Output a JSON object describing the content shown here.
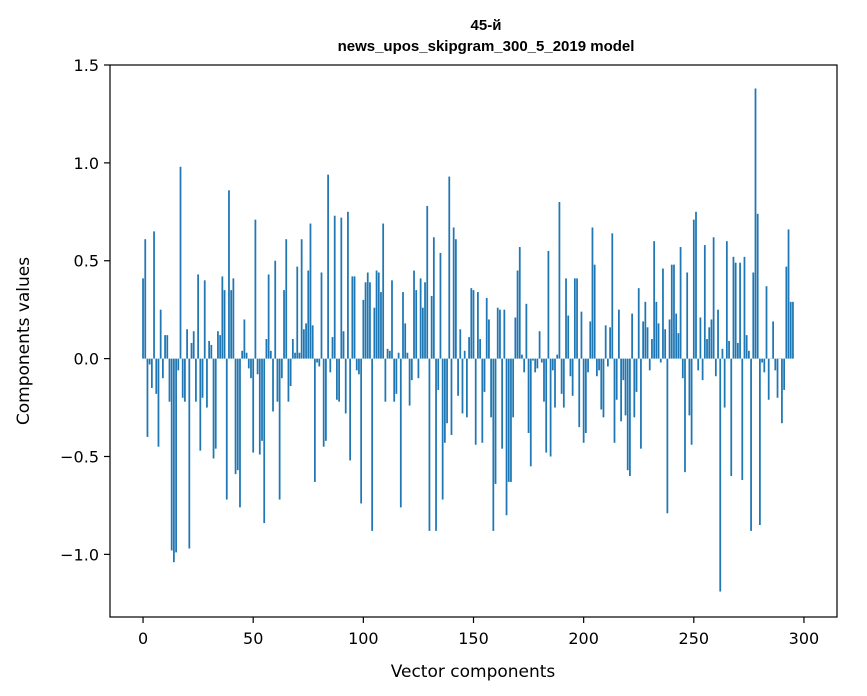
{
  "chart_data": {
    "type": "bar",
    "title_line1": "45-й",
    "title_line2": "news_upos_skipgram_300_5_2019 model",
    "xlabel": "Vector components",
    "ylabel": "Components values",
    "xlim": [
      -15,
      315
    ],
    "ylim": [
      -1.32,
      1.5
    ],
    "xticks": [
      0,
      50,
      100,
      150,
      200,
      250,
      300
    ],
    "xtick_labels": [
      "0",
      "50",
      "100",
      "150",
      "200",
      "250",
      "300"
    ],
    "yticks": [
      -1.0,
      -0.5,
      0.0,
      0.5,
      1.0,
      1.5
    ],
    "ytick_labels": [
      "−1.0",
      "−0.5",
      "0.0",
      "0.5",
      "1.0",
      "1.5"
    ],
    "bar_color": "#1f77b4",
    "grid": false,
    "values": [
      0.41,
      0.61,
      -0.4,
      -0.03,
      -0.15,
      0.65,
      -0.18,
      -0.45,
      0.25,
      -0.1,
      0.12,
      0.12,
      -0.22,
      -0.98,
      -1.04,
      -0.99,
      -0.06,
      0.98,
      -0.2,
      -0.22,
      0.15,
      -0.97,
      0.08,
      0.14,
      -0.22,
      0.43,
      -0.47,
      -0.2,
      0.4,
      -0.25,
      0.09,
      0.07,
      -0.51,
      -0.46,
      0.14,
      0.12,
      0.42,
      0.35,
      -0.72,
      0.86,
      0.35,
      0.41,
      -0.59,
      -0.57,
      -0.76,
      0.04,
      0.2,
      0.03,
      -0.05,
      -0.1,
      -0.48,
      0.71,
      -0.08,
      -0.49,
      -0.42,
      -0.84,
      0.1,
      0.43,
      0.04,
      -0.27,
      0.5,
      -0.22,
      -0.72,
      -0.1,
      0.35,
      0.61,
      -0.22,
      -0.14,
      0.1,
      0.03,
      0.47,
      0.03,
      0.61,
      0.15,
      0.18,
      0.45,
      0.69,
      0.17,
      -0.63,
      -0.02,
      -0.04,
      0.44,
      -0.45,
      -0.42,
      0.94,
      -0.07,
      0.11,
      0.73,
      -0.21,
      -0.22,
      0.72,
      0.14,
      -0.28,
      0.75,
      -0.52,
      0.42,
      0.42,
      -0.06,
      -0.08,
      -0.74,
      0.3,
      0.39,
      0.44,
      0.39,
      -0.88,
      0.26,
      0.45,
      0.44,
      0.34,
      0.69,
      -0.22,
      0.05,
      0.04,
      0.4,
      -0.22,
      -0.18,
      0.03,
      -0.76,
      0.34,
      0.18,
      0.03,
      -0.24,
      -0.11,
      0.45,
      0.35,
      -0.1,
      0.41,
      0.26,
      0.39,
      0.78,
      -0.88,
      0.32,
      0.62,
      -0.88,
      -0.16,
      0.54,
      -0.72,
      -0.43,
      -0.33,
      0.93,
      -0.39,
      0.67,
      0.61,
      -0.19,
      0.15,
      -0.28,
      0.04,
      -0.3,
      0.11,
      0.36,
      0.35,
      -0.44,
      0.34,
      0.1,
      -0.43,
      -0.17,
      0.31,
      0.2,
      -0.3,
      -0.88,
      -0.64,
      0.26,
      0.25,
      -0.46,
      0.25,
      -0.8,
      -0.63,
      -0.63,
      -0.3,
      0.21,
      0.45,
      0.57,
      0.02,
      -0.07,
      0.28,
      -0.38,
      -0.55,
      -0.01,
      -0.07,
      -0.05,
      0.14,
      -0.02,
      -0.22,
      -0.48,
      0.55,
      -0.5,
      -0.06,
      -0.25,
      0.02,
      0.8,
      -0.18,
      -0.25,
      0.41,
      0.22,
      -0.09,
      -0.19,
      0.41,
      0.41,
      -0.35,
      0.24,
      -0.43,
      -0.38,
      -0.07,
      0.19,
      0.67,
      0.48,
      -0.09,
      -0.06,
      -0.26,
      -0.3,
      0.17,
      -0.04,
      0.16,
      0.64,
      -0.43,
      -0.21,
      0.25,
      -0.32,
      -0.11,
      -0.29,
      -0.57,
      -0.6,
      0.23,
      -0.3,
      -0.17,
      0.36,
      -0.46,
      0.19,
      0.29,
      0.16,
      -0.06,
      0.1,
      0.6,
      0.29,
      0.18,
      -0.02,
      0.46,
      0.15,
      -0.79,
      0.2,
      0.48,
      0.48,
      0.23,
      0.13,
      0.57,
      -0.1,
      -0.58,
      0.44,
      -0.29,
      -0.44,
      0.71,
      0.75,
      -0.06,
      0.21,
      -0.11,
      0.58,
      0.1,
      0.16,
      0.2,
      0.62,
      -0.09,
      0.25,
      -1.19,
      0.05,
      -0.25,
      0.6,
      0.09,
      -0.6,
      0.52,
      0.49,
      0.08,
      0.49,
      -0.62,
      0.52,
      0.12,
      0.04,
      -0.88,
      0.44,
      1.38,
      0.74,
      -0.85,
      -0.02,
      -0.07,
      0.37,
      -0.21,
      0.0,
      0.19,
      -0.06,
      -0.2,
      0.0,
      -0.33,
      -0.16,
      0.47,
      0.66,
      0.29,
      0.29
    ]
  }
}
